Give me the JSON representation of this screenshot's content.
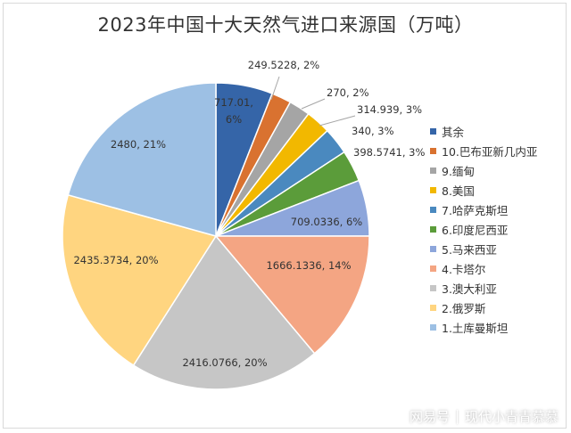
{
  "chart_data": {
    "type": "pie",
    "title": "2023年中国十大天然气进口来源国（万吨）",
    "slices": [
      {
        "name": "其余",
        "value": 717.01,
        "pct": 6,
        "label": "717.01,\n6%",
        "color": "#3565A8"
      },
      {
        "name": "10.巴布亚新几内亚",
        "value": 249.5228,
        "pct": 2,
        "label": "249.5228, 2%",
        "color": "#D97230"
      },
      {
        "name": "9.缅甸",
        "value": 270,
        "pct": 2,
        "label": "270, 2%",
        "color": "#A5A5A5"
      },
      {
        "name": "8.美国",
        "value": 314.939,
        "pct": 3,
        "label": "314.939, 3%",
        "color": "#F2B800"
      },
      {
        "name": "7.哈萨克斯坦",
        "value": 340,
        "pct": 3,
        "label": "340, 3%",
        "color": "#4A89BF"
      },
      {
        "name": "6.印度尼西亚",
        "value": 398.5741,
        "pct": 3,
        "label": "398.5741, 3%",
        "color": "#5B9C3A"
      },
      {
        "name": "5.马来西亚",
        "value": 709.0336,
        "pct": 6,
        "label": "709.0336, 6%",
        "color": "#8DA6DB"
      },
      {
        "name": "4.卡塔尔",
        "value": 1666.1336,
        "pct": 14,
        "label": "1666.1336, 14%",
        "color": "#F4A583"
      },
      {
        "name": "3.澳大利亚",
        "value": 2416.0766,
        "pct": 20,
        "label": "2416.0766, 20%",
        "color": "#C6C6C6"
      },
      {
        "name": "2.俄罗斯",
        "value": 2435.3734,
        "pct": 20,
        "label": "2435.3734, 20%",
        "color": "#FFD580"
      },
      {
        "name": "1.土库曼斯坦",
        "value": 2480,
        "pct": 21,
        "label": "2480, 21%",
        "color": "#9DC0E4"
      }
    ],
    "legend_position": "right"
  },
  "watermark": {
    "brand": "网易号",
    "account": "现代小青青慕慕"
  }
}
